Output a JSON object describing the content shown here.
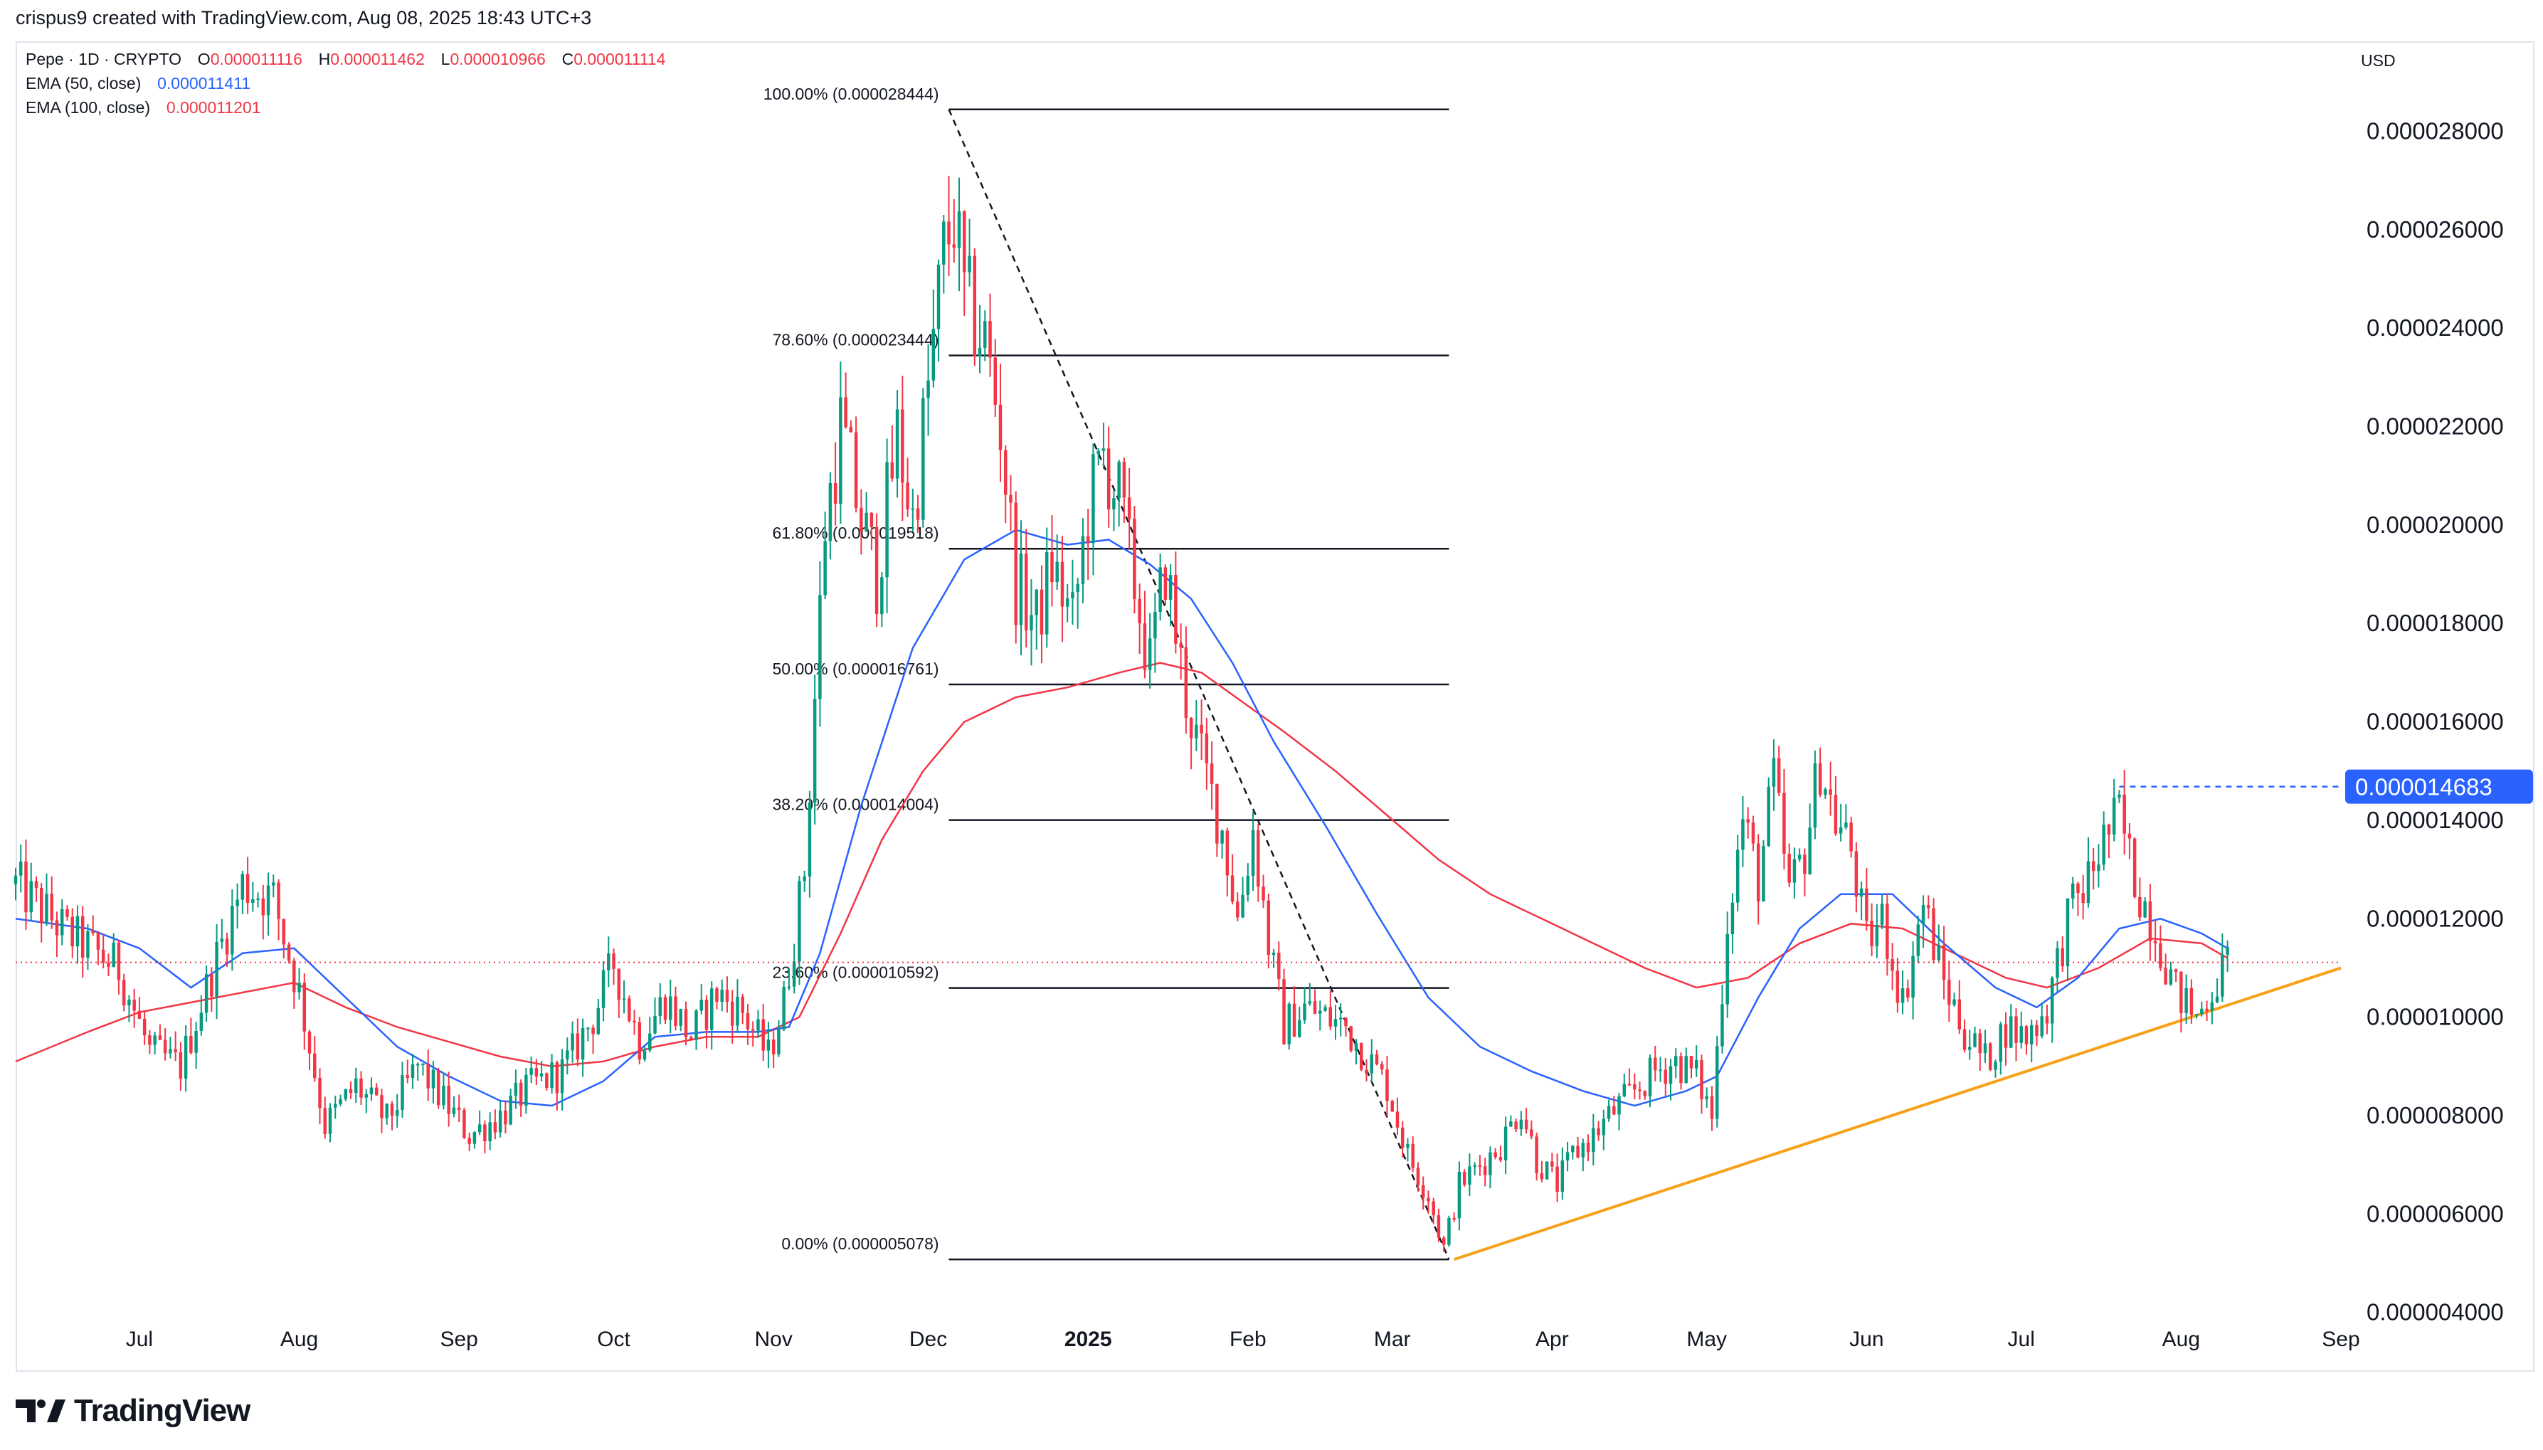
{
  "header": {
    "attribution": "crispus9 created with TradingView.com, Aug 08, 2025 18:43 UTC+3",
    "symbol": "Pepe · 1D · CRYPTO",
    "ohlc": [
      {
        "k": "O",
        "v": "0.000011116"
      },
      {
        "k": "H",
        "v": "0.000011462"
      },
      {
        "k": "L",
        "v": "0.000010966"
      },
      {
        "k": "C",
        "v": "0.000011114"
      }
    ],
    "ema50_label": "EMA (50, close)",
    "ema50_value": "0.000011411",
    "ema100_label": "EMA (100, close)",
    "ema100_value": "0.000011201",
    "currency": "USD"
  },
  "brand": {
    "name": "TradingView"
  },
  "chart_data": {
    "type": "candlestick",
    "title": "Pepe · 1D · CRYPTO",
    "ylabel": "USD",
    "ylim": [
      3.2e-06,
      2.98e-05
    ],
    "y_ticks": [
      "0.000028000",
      "0.000026000",
      "0.000024000",
      "0.000022000",
      "0.000020000",
      "0.000018000",
      "0.000016000",
      "0.000014000",
      "0.000012000",
      "0.000010000",
      "0.000008000",
      "0.000006000",
      "0.000004000"
    ],
    "x_ticks": [
      "Jul",
      "Aug",
      "Sep",
      "Oct",
      "Nov",
      "Dec",
      "2025",
      "Feb",
      "Mar",
      "Apr",
      "May",
      "Jun",
      "Jul",
      "Aug",
      "Sep"
    ],
    "x_tick_days": [
      0,
      31,
      62,
      92,
      123,
      153,
      184,
      215,
      243,
      274,
      304,
      335,
      365,
      396,
      427
    ],
    "xlim_days": [
      -24,
      427
    ],
    "colors": {
      "up": "#089981",
      "down": "#f23645",
      "ema50": "#2962ff",
      "ema100": "#f23645",
      "trend": "#f7a11a",
      "fib": "#131722",
      "price_tag": "#2962ff"
    },
    "series_points": [
      [
        -24,
        1.27e-05
      ],
      [
        -14,
        1.17e-05
      ],
      [
        -4,
        1.1e-05
      ],
      [
        2,
        9.3e-06
      ],
      [
        8,
        9e-06
      ],
      [
        14,
        1.09e-05
      ],
      [
        20,
        1.27e-05
      ],
      [
        26,
        1.24e-05
      ],
      [
        31,
        1.05e-05
      ],
      [
        36,
        7.8e-06
      ],
      [
        42,
        8.6e-06
      ],
      [
        48,
        7.9e-06
      ],
      [
        54,
        9e-06
      ],
      [
        59,
        8.3e-06
      ],
      [
        64,
        7.6e-06
      ],
      [
        70,
        8e-06
      ],
      [
        76,
        8.6e-06
      ],
      [
        82,
        8.9e-06
      ],
      [
        88,
        1e-05
      ],
      [
        92,
        1.11e-05
      ],
      [
        97,
        9.5e-06
      ],
      [
        102,
        1.04e-05
      ],
      [
        107,
        9.6e-06
      ],
      [
        112,
        1.05e-05
      ],
      [
        117,
        1.01e-05
      ],
      [
        122,
        9.2e-06
      ],
      [
        125,
        1.03e-05
      ],
      [
        129,
        1.3e-05
      ],
      [
        133,
        2e-05
      ],
      [
        136,
        2.2e-05
      ],
      [
        140,
        2.01e-05
      ],
      [
        143,
        1.9e-05
      ],
      [
        147,
        2.18e-05
      ],
      [
        150,
        2.01e-05
      ],
      [
        153,
        2.28e-05
      ],
      [
        156,
        2.55e-05
      ],
      [
        158,
        2.63e-05
      ],
      [
        160,
        2.46e-05
      ],
      [
        164,
        2.37e-05
      ],
      [
        167,
        2.2e-05
      ],
      [
        170,
        1.88e-05
      ],
      [
        174,
        1.8e-05
      ],
      [
        177,
        1.92e-05
      ],
      [
        181,
        1.8e-05
      ],
      [
        184,
        2.03e-05
      ],
      [
        187,
        2.14e-05
      ],
      [
        190,
        2.05e-05
      ],
      [
        193,
        1.88e-05
      ],
      [
        196,
        1.71e-05
      ],
      [
        199,
        1.92e-05
      ],
      [
        201,
        1.78e-05
      ],
      [
        203,
        1.65e-05
      ],
      [
        206,
        1.52e-05
      ],
      [
        210,
        1.38e-05
      ],
      [
        213,
        1.2e-05
      ],
      [
        216,
        1.38e-05
      ],
      [
        219,
        1.15e-05
      ],
      [
        222,
        9.8e-06
      ],
      [
        226,
        1.02e-05
      ],
      [
        230,
        1e-05
      ],
      [
        234,
        9.8e-06
      ],
      [
        238,
        9.2e-06
      ],
      [
        242,
        8.6e-06
      ],
      [
        246,
        7.2e-06
      ],
      [
        250,
        6.4e-06
      ],
      [
        253,
        5.3e-06
      ],
      [
        256,
        6.6e-06
      ],
      [
        260,
        7e-06
      ],
      [
        264,
        7.4e-06
      ],
      [
        268,
        8.2e-06
      ],
      [
        271,
        7.1e-06
      ],
      [
        275,
        6.6e-06
      ],
      [
        278,
        7.2e-06
      ],
      [
        282,
        7.6e-06
      ],
      [
        286,
        8.1e-06
      ],
      [
        290,
        8.5e-06
      ],
      [
        294,
        8.9e-06
      ],
      [
        298,
        9.1e-06
      ],
      [
        302,
        8.8e-06
      ],
      [
        305,
        8e-06
      ],
      [
        308,
        1.2e-05
      ],
      [
        311,
        1.4e-05
      ],
      [
        314,
        1.28e-05
      ],
      [
        317,
        1.48e-05
      ],
      [
        320,
        1.25e-05
      ],
      [
        323,
        1.34e-05
      ],
      [
        326,
        1.52e-05
      ],
      [
        329,
        1.4e-05
      ],
      [
        332,
        1.34e-05
      ],
      [
        335,
        1.15e-05
      ],
      [
        338,
        1.2e-05
      ],
      [
        342,
        1.03e-05
      ],
      [
        346,
        1.23e-05
      ],
      [
        350,
        1.07e-05
      ],
      [
        354,
        9.7e-06
      ],
      [
        358,
        9.1e-06
      ],
      [
        362,
        9.8e-06
      ],
      [
        366,
        9.6e-06
      ],
      [
        370,
        1.02e-05
      ],
      [
        374,
        1.2e-05
      ],
      [
        378,
        1.28e-05
      ],
      [
        381,
        1.36e-05
      ],
      [
        384,
        1.41e-05
      ],
      [
        387,
        1.28e-05
      ],
      [
        391,
        1.18e-05
      ],
      [
        395,
        1.05e-05
      ],
      [
        399,
        1e-05
      ],
      [
        402,
        1.06e-05
      ],
      [
        405,
        1.11e-05
      ]
    ],
    "ema50_points": [
      [
        -24,
        1.2e-05
      ],
      [
        -10,
        1.18e-05
      ],
      [
        0,
        1.14e-05
      ],
      [
        10,
        1.06e-05
      ],
      [
        20,
        1.13e-05
      ],
      [
        30,
        1.14e-05
      ],
      [
        40,
        1.04e-05
      ],
      [
        50,
        9.4e-06
      ],
      [
        60,
        8.8e-06
      ],
      [
        70,
        8.3e-06
      ],
      [
        80,
        8.2e-06
      ],
      [
        90,
        8.7e-06
      ],
      [
        100,
        9.6e-06
      ],
      [
        110,
        9.7e-06
      ],
      [
        120,
        9.7e-06
      ],
      [
        126,
        9.8e-06
      ],
      [
        132,
        1.13e-05
      ],
      [
        140,
        1.43e-05
      ],
      [
        150,
        1.75e-05
      ],
      [
        160,
        1.93e-05
      ],
      [
        170,
        1.99e-05
      ],
      [
        180,
        1.96e-05
      ],
      [
        188,
        1.97e-05
      ],
      [
        196,
        1.92e-05
      ],
      [
        204,
        1.85e-05
      ],
      [
        212,
        1.72e-05
      ],
      [
        220,
        1.56e-05
      ],
      [
        230,
        1.39e-05
      ],
      [
        240,
        1.21e-05
      ],
      [
        250,
        1.04e-05
      ],
      [
        260,
        9.4e-06
      ],
      [
        270,
        8.9e-06
      ],
      [
        280,
        8.5e-06
      ],
      [
        290,
        8.2e-06
      ],
      [
        300,
        8.5e-06
      ],
      [
        306,
        8.8e-06
      ],
      [
        314,
        1.04e-05
      ],
      [
        322,
        1.18e-05
      ],
      [
        330,
        1.25e-05
      ],
      [
        340,
        1.25e-05
      ],
      [
        350,
        1.15e-05
      ],
      [
        360,
        1.06e-05
      ],
      [
        368,
        1.02e-05
      ],
      [
        376,
        1.08e-05
      ],
      [
        384,
        1.18e-05
      ],
      [
        392,
        1.2e-05
      ],
      [
        400,
        1.17e-05
      ],
      [
        405,
        1.14e-05
      ]
    ],
    "ema100_points": [
      [
        -24,
        9.1e-06
      ],
      [
        -10,
        9.7e-06
      ],
      [
        0,
        1.01e-05
      ],
      [
        10,
        1.03e-05
      ],
      [
        20,
        1.05e-05
      ],
      [
        30,
        1.07e-05
      ],
      [
        40,
        1.02e-05
      ],
      [
        50,
        9.8e-06
      ],
      [
        60,
        9.5e-06
      ],
      [
        70,
        9.2e-06
      ],
      [
        80,
        9e-06
      ],
      [
        90,
        9.1e-06
      ],
      [
        100,
        9.4e-06
      ],
      [
        110,
        9.6e-06
      ],
      [
        120,
        9.6e-06
      ],
      [
        128,
        1e-05
      ],
      [
        136,
        1.17e-05
      ],
      [
        144,
        1.36e-05
      ],
      [
        152,
        1.5e-05
      ],
      [
        160,
        1.6e-05
      ],
      [
        170,
        1.65e-05
      ],
      [
        180,
        1.67e-05
      ],
      [
        190,
        1.7e-05
      ],
      [
        198,
        1.72e-05
      ],
      [
        206,
        1.7e-05
      ],
      [
        214,
        1.64e-05
      ],
      [
        222,
        1.58e-05
      ],
      [
        232,
        1.5e-05
      ],
      [
        242,
        1.41e-05
      ],
      [
        252,
        1.32e-05
      ],
      [
        262,
        1.25e-05
      ],
      [
        272,
        1.2e-05
      ],
      [
        282,
        1.15e-05
      ],
      [
        292,
        1.1e-05
      ],
      [
        302,
        1.06e-05
      ],
      [
        312,
        1.08e-05
      ],
      [
        322,
        1.15e-05
      ],
      [
        332,
        1.19e-05
      ],
      [
        342,
        1.18e-05
      ],
      [
        352,
        1.13e-05
      ],
      [
        362,
        1.08e-05
      ],
      [
        370,
        1.06e-05
      ],
      [
        380,
        1.1e-05
      ],
      [
        390,
        1.16e-05
      ],
      [
        400,
        1.15e-05
      ],
      [
        405,
        1.12e-05
      ]
    ],
    "fib_levels": [
      {
        "label": "100.00% (0.000028444)",
        "value": 2.8444e-05
      },
      {
        "label": "78.60% (0.000023444)",
        "value": 2.3444e-05
      },
      {
        "label": "61.80% (0.000019518)",
        "value": 1.9518e-05
      },
      {
        "label": "50.00% (0.000016761)",
        "value": 1.6761e-05
      },
      {
        "label": "38.20% (0.000014004)",
        "value": 1.4004e-05
      },
      {
        "label": "23.60% (0.000010592)",
        "value": 1.0592e-05
      },
      {
        "label": "0.00% (0.000005078)",
        "value": 5.078e-06
      }
    ],
    "fib_x_days": [
      157,
      254
    ],
    "fib_diagonal": [
      [
        157,
        2.8444e-05
      ],
      [
        254,
        5.078e-06
      ]
    ],
    "trend_line": [
      [
        255,
        5.078e-06
      ],
      [
        427,
        1.1e-05
      ]
    ],
    "resistance": {
      "value": 1.4683e-05,
      "from_day": 384,
      "label": "0.000014683"
    },
    "current_price": 1.1114e-05
  }
}
